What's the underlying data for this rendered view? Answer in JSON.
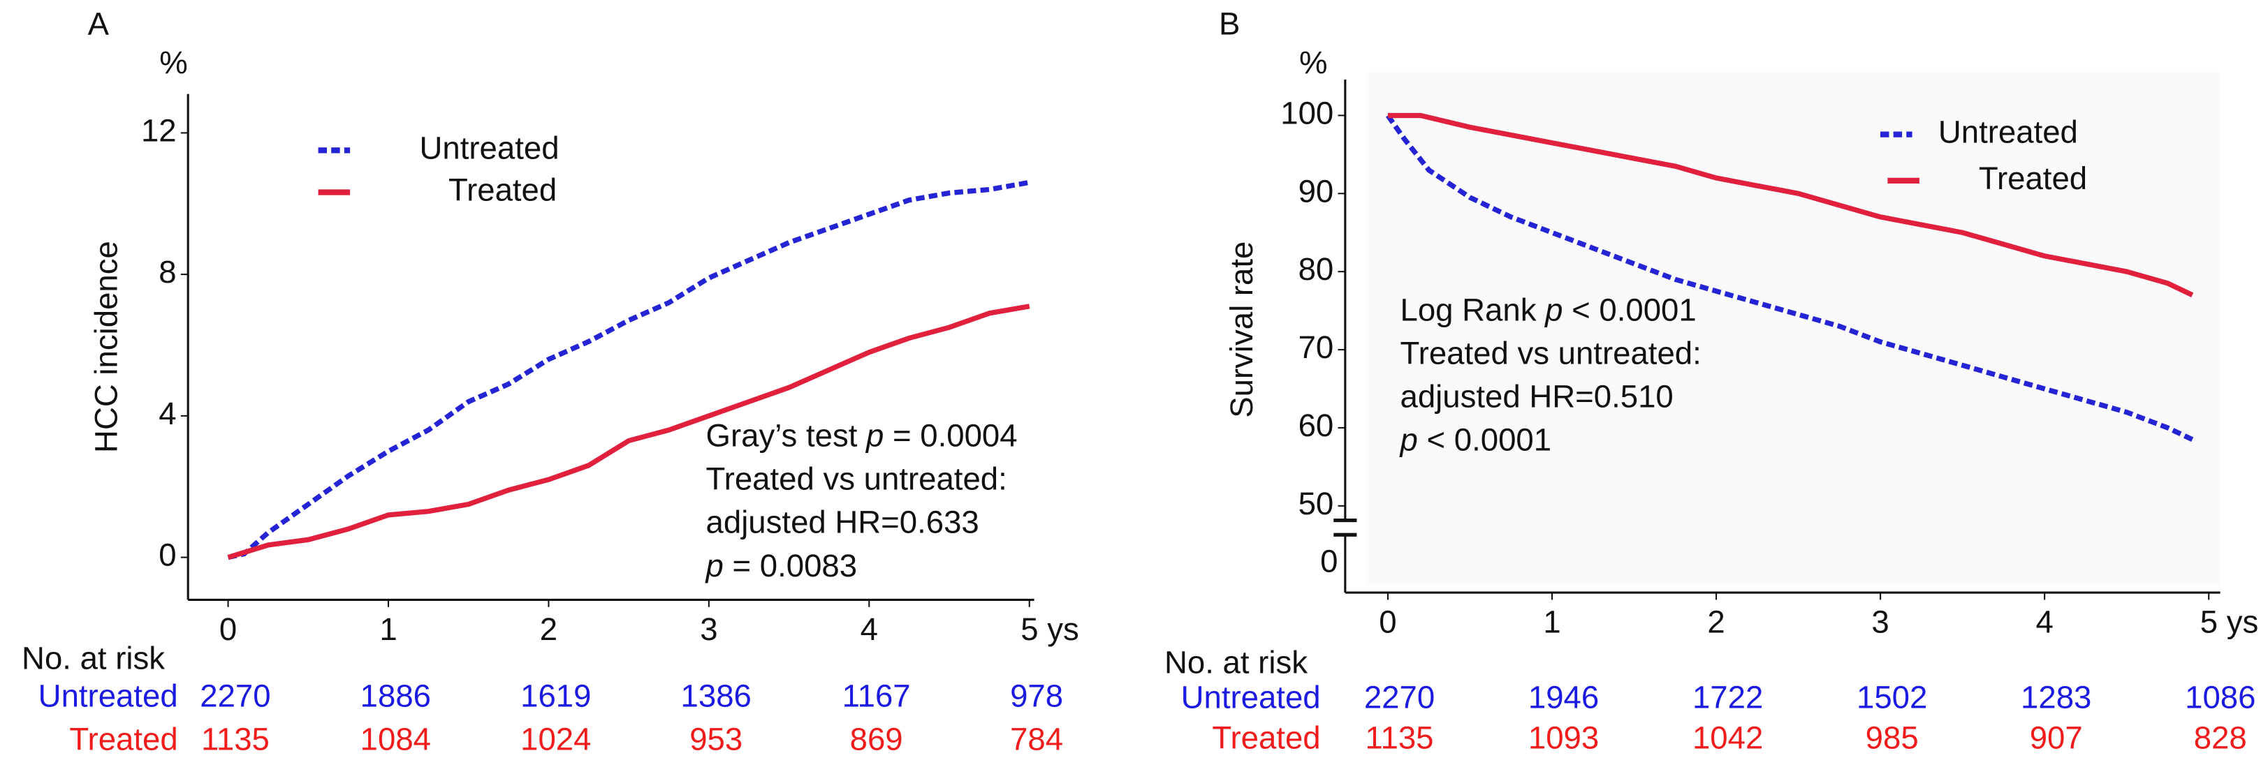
{
  "chart_data": [
    {
      "type": "line",
      "panel_label": "A",
      "y_unit": "%",
      "ylabel": "HCC incidence",
      "xlim": [
        -0.25,
        5.03
      ],
      "ylim": [
        -1.2,
        13.1
      ],
      "xticks": [
        0,
        1,
        2,
        3,
        4,
        {
          "value": 5,
          "label": "5 ys"
        }
      ],
      "yticks": [
        0,
        4,
        8,
        12
      ],
      "series": [
        {
          "name": "Untreated",
          "color": "#2424d4",
          "dash": true,
          "x": [
            0,
            0.1,
            0.25,
            0.5,
            0.75,
            1,
            1.25,
            1.5,
            1.75,
            2,
            2.25,
            2.5,
            2.75,
            3,
            3.25,
            3.5,
            3.75,
            4,
            4.25,
            4.5,
            4.75,
            5
          ],
          "values": [
            0,
            0.1,
            0.7,
            1.5,
            2.3,
            3.0,
            3.6,
            4.4,
            4.9,
            5.6,
            6.1,
            6.7,
            7.2,
            7.9,
            8.4,
            8.9,
            9.3,
            9.7,
            10.1,
            10.3,
            10.4,
            10.6
          ]
        },
        {
          "name": "Treated",
          "color": "#e0203c",
          "dash": false,
          "x": [
            0,
            0.25,
            0.5,
            0.75,
            1,
            1.25,
            1.5,
            1.75,
            2,
            2.25,
            2.5,
            2.75,
            3,
            3.25,
            3.5,
            3.75,
            4,
            4.25,
            4.5,
            4.75,
            5
          ],
          "values": [
            0,
            0.35,
            0.5,
            0.8,
            1.2,
            1.3,
            1.5,
            1.9,
            2.2,
            2.6,
            3.3,
            3.6,
            4.0,
            4.4,
            4.8,
            5.3,
            5.8,
            6.2,
            6.5,
            6.9,
            7.1
          ]
        }
      ],
      "annotations": [
        [
          {
            "text": "Gray’s test "
          },
          {
            "text": "p",
            "italic": true
          },
          {
            "text": " = 0.0004"
          }
        ],
        [
          {
            "text": "Treated vs untreated:"
          }
        ],
        [
          {
            "text": "adjusted HR=0.633"
          }
        ],
        [
          {
            "text": "p",
            "italic": true
          },
          {
            "text": " = 0.0083"
          }
        ]
      ],
      "risk_table": {
        "title": "No. at risk",
        "rows": [
          {
            "name": "Untreated",
            "color": "#1a1ae0",
            "values": [
              2270,
              1886,
              1619,
              1386,
              1167,
              978
            ]
          },
          {
            "name": "Treated",
            "color": "#f01c1c",
            "values": [
              1135,
              1084,
              1024,
              953,
              869,
              784
            ]
          }
        ]
      }
    },
    {
      "type": "line",
      "panel_label": "B",
      "y_unit": "%",
      "ylabel": "Survival rate",
      "xlim": [
        -0.26,
        5.07
      ],
      "ylim": [
        50,
        104.6
      ],
      "xticks": [
        0,
        1,
        2,
        3,
        4,
        {
          "value": 5,
          "label": "5 ys"
        }
      ],
      "yticks": [
        50,
        60,
        70,
        80,
        90,
        100
      ],
      "yticks_below_break": [
        0
      ],
      "series": [
        {
          "name": "Untreated",
          "color": "#2424d4",
          "dash": true,
          "x": [
            0,
            0.1,
            0.25,
            0.5,
            0.75,
            1,
            1.25,
            1.5,
            1.75,
            2,
            2.25,
            2.5,
            2.75,
            3,
            3.25,
            3.5,
            3.75,
            4,
            4.25,
            4.5,
            4.75,
            4.9
          ],
          "values": [
            100,
            97,
            93,
            89.5,
            87,
            85,
            83,
            81,
            79,
            77.5,
            76,
            74.5,
            73,
            71,
            69.5,
            68,
            66.5,
            65,
            63.5,
            62,
            60,
            58.5
          ]
        },
        {
          "name": "Treated",
          "color": "#e0203c",
          "dash": false,
          "x": [
            0,
            0.2,
            0.5,
            0.75,
            1,
            1.25,
            1.5,
            1.75,
            2,
            2.25,
            2.5,
            2.75,
            3,
            3.25,
            3.5,
            3.75,
            4,
            4.25,
            4.5,
            4.75,
            4.9
          ],
          "values": [
            100,
            100,
            98.5,
            97.5,
            96.5,
            95.5,
            94.5,
            93.5,
            92,
            91,
            90,
            88.5,
            87,
            86,
            85,
            83.5,
            82,
            81,
            80,
            78.5,
            77
          ]
        }
      ],
      "annotations": [
        [
          {
            "text": "Log Rank "
          },
          {
            "text": "p",
            "italic": true
          },
          {
            "text": " < 0.0001"
          }
        ],
        [
          {
            "text": "Treated vs untreated:"
          }
        ],
        [
          {
            "text": "adjusted HR=0.510"
          }
        ],
        [
          {
            "text": "p",
            "italic": true
          },
          {
            "text": " < 0.0001"
          }
        ]
      ],
      "risk_table": {
        "title": "No. at risk",
        "rows": [
          {
            "name": "Untreated",
            "color": "#1a1ae0",
            "values": [
              2270,
              1946,
              1722,
              1502,
              1283,
              1086
            ]
          },
          {
            "name": "Treated",
            "color": "#f01c1c",
            "values": [
              1135,
              1093,
              1042,
              985,
              907,
              828
            ]
          }
        ]
      }
    }
  ]
}
